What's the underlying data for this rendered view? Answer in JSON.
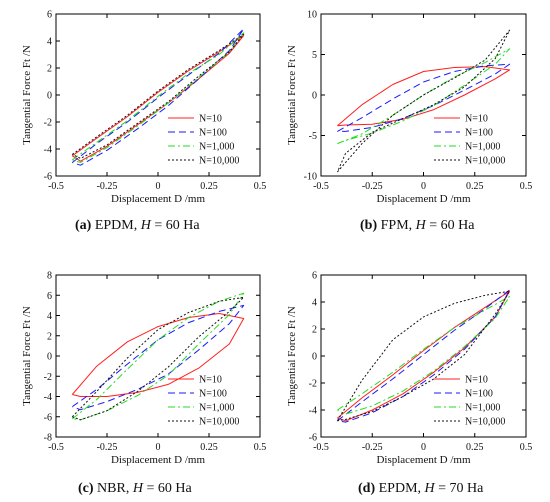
{
  "figure": {
    "x_label": "Displacement D /mm",
    "y_label": "Tangential Force Ft /N",
    "legend_position": "bottom-right",
    "series_styles": [
      {
        "name": "N=10",
        "color": "#ff2020",
        "dash": "solid"
      },
      {
        "name": "N=100",
        "color": "#1a1aff",
        "dash": "dash"
      },
      {
        "name": "N=1,000",
        "color": "#22dd22",
        "dash": "dashdot"
      },
      {
        "name": "N=10,000",
        "color": "#111111",
        "dash": "dotted"
      }
    ]
  },
  "captions": [
    {
      "tag": "(a)",
      "material": "EPDM",
      "h_label": "H",
      "h_value": "= 60 Ha"
    },
    {
      "tag": "(b)",
      "material": "FPM",
      "h_label": "H",
      "h_value": "= 60 Ha"
    },
    {
      "tag": "(c)",
      "material": "NBR",
      "h_label": "H",
      "h_value": "= 60 Ha"
    },
    {
      "tag": "(d)",
      "material": "EPDM",
      "h_label": "H",
      "h_value": "= 70 Ha"
    }
  ],
  "chart_data": [
    {
      "type": "line",
      "panel": "a",
      "xlabel": "Displacement D /mm",
      "ylabel": "Tangential Force Ft /N",
      "xlim": [
        -0.5,
        0.5
      ],
      "ylim": [
        -6,
        6
      ],
      "xticks": [
        -0.5,
        -0.25,
        0,
        0.25,
        0.5
      ],
      "xtick_labels": [
        "-0.5",
        "-0.25",
        "0",
        "0.25",
        "0.5"
      ],
      "yticks": [
        -6,
        -4,
        -2,
        0,
        2,
        4,
        6
      ],
      "ytick_labels": [
        "-6",
        "-4",
        "-2",
        "0",
        "2",
        "4",
        "6"
      ],
      "grid": false,
      "legend_position": "bottom-right",
      "series": [
        {
          "name": "N=10",
          "x": [
            -0.42,
            -0.3,
            -0.15,
            0,
            0.15,
            0.3,
            0.42,
            0.35,
            0.2,
            0.05,
            -0.1,
            -0.25,
            -0.38,
            -0.42
          ],
          "y": [
            -4.5,
            -3.2,
            -1.6,
            0.2,
            1.8,
            3.2,
            4.4,
            3.1,
            1.2,
            -0.6,
            -2.2,
            -3.8,
            -4.9,
            -4.5
          ]
        },
        {
          "name": "N=100",
          "x": [
            -0.42,
            -0.3,
            -0.15,
            0,
            0.15,
            0.3,
            0.42,
            0.35,
            0.2,
            0.05,
            -0.1,
            -0.25,
            -0.38,
            -0.42
          ],
          "y": [
            -5.0,
            -3.6,
            -2.0,
            -0.2,
            1.5,
            3.1,
            4.9,
            3.3,
            1.2,
            -0.8,
            -2.5,
            -4.1,
            -5.2,
            -5.0
          ]
        },
        {
          "name": "N=1,000",
          "x": [
            -0.42,
            -0.3,
            -0.15,
            0,
            0.15,
            0.3,
            0.42,
            0.35,
            0.2,
            0.05,
            -0.1,
            -0.25,
            -0.38,
            -0.42
          ],
          "y": [
            -4.8,
            -3.5,
            -1.9,
            -0.1,
            1.6,
            3.0,
            4.6,
            3.2,
            1.3,
            -0.6,
            -2.3,
            -3.9,
            -5.0,
            -4.8
          ]
        },
        {
          "name": "N=10,000",
          "x": [
            -0.42,
            -0.3,
            -0.15,
            0,
            0.15,
            0.3,
            0.42,
            0.35,
            0.2,
            0.05,
            -0.1,
            -0.25,
            -0.38,
            -0.42
          ],
          "y": [
            -4.4,
            -3.1,
            -1.5,
            0.3,
            1.9,
            3.3,
            4.5,
            3.2,
            1.4,
            -0.5,
            -2.1,
            -3.7,
            -4.7,
            -4.4
          ]
        }
      ]
    },
    {
      "type": "line",
      "panel": "b",
      "xlabel": "Displacement D /mm",
      "ylabel": "Tangential Force Ft /N",
      "xlim": [
        -0.5,
        0.5
      ],
      "ylim": [
        -10,
        10
      ],
      "xticks": [
        -0.5,
        -0.25,
        0,
        0.25,
        0.5
      ],
      "xtick_labels": [
        "-0.5",
        "-0.25",
        "0",
        "0.25",
        "0.5"
      ],
      "yticks": [
        -10,
        -5,
        0,
        5,
        10
      ],
      "ytick_labels": [
        "-10",
        "-5",
        "0",
        "5",
        "10"
      ],
      "grid": false,
      "legend_position": "bottom-right",
      "series": [
        {
          "name": "N=10",
          "x": [
            -0.42,
            -0.3,
            -0.15,
            0,
            0.15,
            0.3,
            0.42,
            0.35,
            0.2,
            0.05,
            -0.1,
            -0.25,
            -0.38,
            -0.42
          ],
          "y": [
            -3.8,
            -1.2,
            1.3,
            2.9,
            3.4,
            3.5,
            3.1,
            2.0,
            0.0,
            -1.8,
            -3.0,
            -3.6,
            -3.7,
            -3.8
          ]
        },
        {
          "name": "N=100",
          "x": [
            -0.42,
            -0.3,
            -0.15,
            0,
            0.15,
            0.3,
            0.42,
            0.35,
            0.2,
            0.05,
            -0.1,
            -0.25,
            -0.38,
            -0.42
          ],
          "y": [
            -4.5,
            -2.8,
            -0.5,
            1.6,
            2.9,
            3.6,
            3.8,
            2.6,
            0.6,
            -1.3,
            -2.9,
            -4.0,
            -4.5,
            -4.5
          ]
        },
        {
          "name": "N=1,000",
          "x": [
            -0.42,
            -0.3,
            -0.15,
            0,
            0.15,
            0.3,
            0.42,
            0.35,
            0.2,
            0.05,
            -0.1,
            -0.25,
            -0.38,
            -0.42
          ],
          "y": [
            -6.0,
            -4.8,
            -2.5,
            0.0,
            2.2,
            4.0,
            5.7,
            3.8,
            1.2,
            -1.3,
            -3.2,
            -4.7,
            -5.6,
            -6.0
          ]
        },
        {
          "name": "N=10,000",
          "x": [
            -0.42,
            -0.3,
            -0.15,
            0,
            0.15,
            0.3,
            0.42,
            0.35,
            0.2,
            0.05,
            -0.1,
            -0.25,
            -0.38,
            -0.42
          ],
          "y": [
            -9.5,
            -6.0,
            -2.5,
            0.0,
            2.1,
            4.3,
            8.0,
            4.5,
            1.0,
            -1.2,
            -2.9,
            -4.6,
            -7.2,
            -9.5
          ]
        }
      ]
    },
    {
      "type": "line",
      "panel": "c",
      "xlabel": "Displacement D /mm",
      "ylabel": "Tangential Force Ft /N",
      "xlim": [
        -0.5,
        0.5
      ],
      "ylim": [
        -8,
        8
      ],
      "xticks": [
        -0.5,
        -0.25,
        0,
        0.25,
        0.5
      ],
      "xtick_labels": [
        "-0.5",
        "-0.25",
        "0",
        "0.25",
        "0.5"
      ],
      "yticks": [
        -8,
        -6,
        -4,
        -2,
        0,
        2,
        4,
        6,
        8
      ],
      "ytick_labels": [
        "-8",
        "-6",
        "-4",
        "-2",
        "0",
        "2",
        "4",
        "6",
        "8"
      ],
      "grid": false,
      "legend_position": "bottom-right",
      "series": [
        {
          "name": "N=10",
          "x": [
            -0.42,
            -0.3,
            -0.15,
            0,
            0.15,
            0.3,
            0.42,
            0.35,
            0.2,
            0.05,
            -0.1,
            -0.25,
            -0.38,
            -0.42
          ],
          "y": [
            -3.8,
            -1.0,
            1.4,
            2.9,
            3.8,
            4.2,
            3.7,
            1.2,
            -1.2,
            -2.8,
            -3.6,
            -4.0,
            -4.0,
            -3.8
          ]
        },
        {
          "name": "N=100",
          "x": [
            -0.42,
            -0.3,
            -0.15,
            0,
            0.15,
            0.3,
            0.42,
            0.35,
            0.2,
            0.05,
            -0.1,
            -0.25,
            -0.38,
            -0.42
          ],
          "y": [
            -5.0,
            -3.3,
            -0.8,
            1.6,
            3.3,
            4.4,
            5.0,
            3.2,
            0.6,
            -1.8,
            -3.3,
            -4.5,
            -5.3,
            -5.0
          ]
        },
        {
          "name": "N=1,000",
          "x": [
            -0.42,
            -0.3,
            -0.15,
            0,
            0.15,
            0.3,
            0.42,
            0.35,
            0.2,
            0.05,
            -0.1,
            -0.25,
            -0.38,
            -0.42
          ],
          "y": [
            -6.2,
            -4.3,
            -1.3,
            1.6,
            3.8,
            5.4,
            6.2,
            4.1,
            1.2,
            -1.9,
            -3.9,
            -5.4,
            -6.3,
            -6.2
          ]
        },
        {
          "name": "N=10,000",
          "x": [
            -0.42,
            -0.3,
            -0.15,
            0,
            0.15,
            0.3,
            0.42,
            0.35,
            0.2,
            0.05,
            -0.1,
            -0.25,
            -0.38,
            -0.42
          ],
          "y": [
            -6.0,
            -3.5,
            -0.2,
            2.6,
            4.3,
            5.4,
            5.8,
            4.4,
            1.9,
            -1.1,
            -3.5,
            -5.4,
            -6.3,
            -6.0
          ]
        }
      ]
    },
    {
      "type": "line",
      "panel": "d",
      "xlabel": "Displacement D /mm",
      "ylabel": "Tangential Force Ft /N",
      "xlim": [
        -0.5,
        0.5
      ],
      "ylim": [
        -6,
        6
      ],
      "xticks": [
        -0.5,
        -0.25,
        0,
        0.25,
        0.5
      ],
      "xtick_labels": [
        "-0.5",
        "-0.25",
        "0",
        "0.25",
        "0.5"
      ],
      "yticks": [
        -6,
        -4,
        -2,
        0,
        2,
        4,
        6
      ],
      "ytick_labels": [
        "-6",
        "-4",
        "-2",
        "0",
        "2",
        "4",
        "6"
      ],
      "grid": false,
      "legend_position": "bottom-right",
      "series": [
        {
          "name": "N=10",
          "x": [
            -0.42,
            -0.3,
            -0.15,
            0,
            0.15,
            0.3,
            0.42,
            0.35,
            0.2,
            0.05,
            -0.1,
            -0.25,
            -0.38,
            -0.42
          ],
          "y": [
            -4.6,
            -3.1,
            -1.4,
            0.4,
            2.1,
            3.6,
            4.8,
            2.9,
            0.6,
            -1.2,
            -2.8,
            -4.0,
            -4.8,
            -4.6
          ]
        },
        {
          "name": "N=100",
          "x": [
            -0.42,
            -0.3,
            -0.15,
            0,
            0.15,
            0.3,
            0.42,
            0.35,
            0.2,
            0.05,
            -0.1,
            -0.25,
            -0.38,
            -0.42
          ],
          "y": [
            -4.8,
            -3.4,
            -1.7,
            0.1,
            1.9,
            3.5,
            4.9,
            2.9,
            0.5,
            -1.4,
            -3.0,
            -4.2,
            -4.9,
            -4.8
          ]
        },
        {
          "name": "N=1,000",
          "x": [
            -0.42,
            -0.3,
            -0.15,
            0,
            0.15,
            0.3,
            0.42,
            0.35,
            0.2,
            0.05,
            -0.1,
            -0.25,
            -0.38,
            -0.42
          ],
          "y": [
            -4.0,
            -2.8,
            -1.2,
            0.5,
            2.1,
            3.4,
            4.4,
            2.8,
            0.7,
            -1.1,
            -2.6,
            -3.7,
            -4.3,
            -4.0
          ]
        },
        {
          "name": "N=10,000",
          "x": [
            -0.42,
            -0.3,
            -0.15,
            0,
            0.15,
            0.3,
            0.42,
            0.35,
            0.2,
            0.05,
            -0.1,
            -0.25,
            -0.38,
            -0.42
          ],
          "y": [
            -4.8,
            -1.8,
            1.2,
            2.9,
            3.9,
            4.5,
            4.8,
            3.1,
            0.1,
            -1.7,
            -3.0,
            -4.1,
            -4.7,
            -4.8
          ]
        }
      ]
    }
  ]
}
